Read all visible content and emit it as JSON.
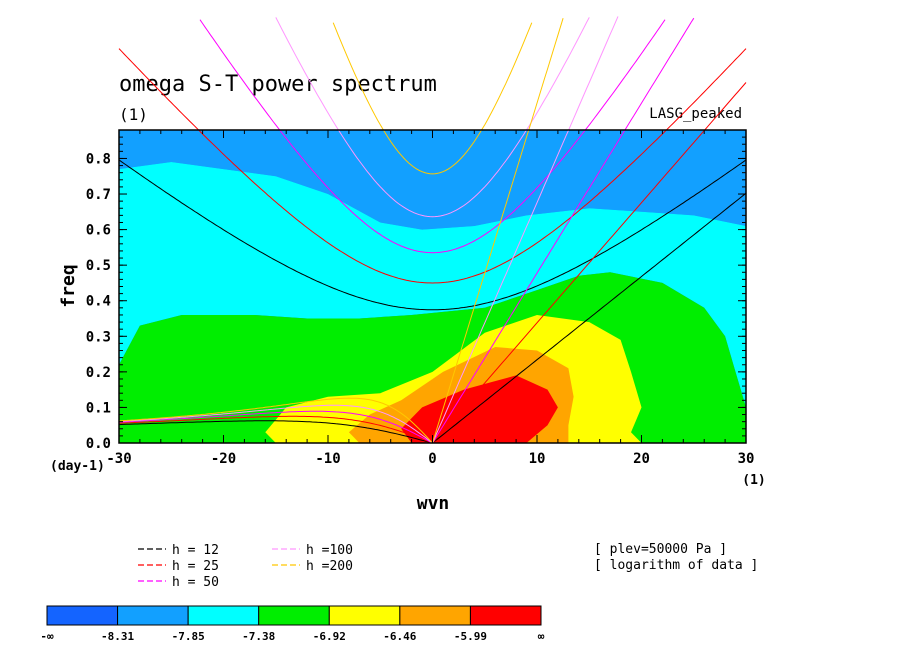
{
  "chart_data": {
    "type": "contour",
    "title": "omega S-T power spectrum",
    "units_label": "(1)",
    "model_label": "LASG_peaked",
    "xlabel": "wvn",
    "ylabel": "freq",
    "x_unit_label": "(1)",
    "y_unit_label": "(day-1)",
    "xlim": [
      -30,
      30
    ],
    "ylim": [
      0,
      0.88
    ],
    "xticks": [
      "-30",
      "-20",
      "-10",
      "0",
      "10",
      "20",
      "30"
    ],
    "xtick_values": [
      -30,
      -20,
      -10,
      0,
      10,
      20,
      30
    ],
    "yticks": [
      "0.0",
      "0.1",
      "0.2",
      "0.3",
      "0.4",
      "0.5",
      "0.6",
      "0.7",
      "0.8"
    ],
    "ytick_values": [
      0,
      0.1,
      0.2,
      0.3,
      0.4,
      0.5,
      0.6,
      0.7,
      0.8
    ],
    "levels": [
      {
        "lower": "-∞",
        "upper": "-8.31",
        "color": "#1464ff"
      },
      {
        "lower": "-8.31",
        "upper": "-7.85",
        "color": "#12a0ff"
      },
      {
        "lower": "-7.85",
        "upper": "-7.38",
        "color": "#00ffff"
      },
      {
        "lower": "-7.38",
        "upper": "-6.92",
        "color": "#00ee00"
      },
      {
        "lower": "-6.92",
        "upper": "-6.46",
        "color": "#ffff00"
      },
      {
        "lower": "-6.46",
        "upper": "-5.99",
        "color": "#ffa500"
      },
      {
        "lower": "-5.99",
        "upper": "∞",
        "color": "#ff0000"
      }
    ],
    "colorbar_labels": [
      "-∞",
      "-8.31",
      "-7.85",
      "-7.38",
      "-6.92",
      "-6.46",
      "-5.99",
      "∞"
    ],
    "filled_regions": [
      {
        "level": 1,
        "points": [
          [
            -30,
            0.65
          ],
          [
            -25,
            0.69
          ],
          [
            -20,
            0.71
          ],
          [
            -15,
            0.75
          ],
          [
            -10,
            0.72
          ],
          [
            -5,
            0.64
          ],
          [
            0,
            0.61
          ],
          [
            5,
            0.66
          ],
          [
            10,
            0.72
          ],
          [
            15,
            0.74
          ],
          [
            20,
            0.8
          ],
          [
            22,
            0.88
          ],
          [
            -30,
            0.88
          ]
        ]
      },
      {
        "level": 2,
        "points": [
          [
            -30,
            0.77
          ],
          [
            -25,
            0.79
          ],
          [
            -20,
            0.77
          ],
          [
            -15,
            0.75
          ],
          [
            -10,
            0.7
          ],
          [
            -5,
            0.62
          ],
          [
            -1,
            0.6
          ],
          [
            4,
            0.61
          ],
          [
            9,
            0.64
          ],
          [
            15,
            0.66
          ],
          [
            20,
            0.65
          ],
          [
            25,
            0.64
          ],
          [
            30,
            0.61
          ],
          [
            30,
            0.88
          ],
          [
            -30,
            0.88
          ]
        ]
      },
      {
        "level": 3,
        "points": [
          [
            -30,
            0.22
          ],
          [
            -28,
            0.33
          ],
          [
            -24,
            0.36
          ],
          [
            -17,
            0.36
          ],
          [
            -12,
            0.35
          ],
          [
            -7,
            0.35
          ],
          [
            -2,
            0.36
          ],
          [
            5,
            0.38
          ],
          [
            10,
            0.43
          ],
          [
            14,
            0.47
          ],
          [
            17,
            0.48
          ],
          [
            22,
            0.45
          ],
          [
            26,
            0.38
          ],
          [
            28,
            0.3
          ],
          [
            29,
            0.2
          ],
          [
            30,
            0.1
          ],
          [
            30,
            0.61
          ],
          [
            25,
            0.64
          ],
          [
            20,
            0.65
          ],
          [
            15,
            0.66
          ],
          [
            9,
            0.64
          ],
          [
            4,
            0.61
          ],
          [
            -1,
            0.6
          ],
          [
            -5,
            0.62
          ],
          [
            -10,
            0.7
          ],
          [
            -15,
            0.75
          ],
          [
            -20,
            0.77
          ],
          [
            -25,
            0.79
          ],
          [
            -30,
            0.77
          ]
        ]
      },
      {
        "level": 4,
        "points": [
          [
            -30,
            0.22
          ],
          [
            -28,
            0.33
          ],
          [
            -24,
            0.36
          ],
          [
            -17,
            0.36
          ],
          [
            -12,
            0.35
          ],
          [
            -7,
            0.35
          ],
          [
            -2,
            0.36
          ],
          [
            5,
            0.38
          ],
          [
            10,
            0.43
          ],
          [
            14,
            0.47
          ],
          [
            17,
            0.48
          ],
          [
            22,
            0.45
          ],
          [
            26,
            0.38
          ],
          [
            28,
            0.3
          ],
          [
            29,
            0.2
          ],
          [
            30,
            0.1
          ],
          [
            30,
            0
          ],
          [
            -30,
            0
          ]
        ]
      },
      {
        "level": 5,
        "points": [
          [
            -15,
            0
          ],
          [
            -16,
            0.03
          ],
          [
            -14,
            0.1
          ],
          [
            -10,
            0.13
          ],
          [
            -5,
            0.14
          ],
          [
            0,
            0.2
          ],
          [
            5,
            0.31
          ],
          [
            10,
            0.36
          ],
          [
            15,
            0.34
          ],
          [
            18,
            0.29
          ],
          [
            19,
            0.2
          ],
          [
            20,
            0.1
          ],
          [
            19,
            0.03
          ],
          [
            20,
            0
          ]
        ]
      },
      {
        "level": 6,
        "points": [
          [
            -7,
            0
          ],
          [
            -8,
            0.03
          ],
          [
            -6,
            0.08
          ],
          [
            -3,
            0.12
          ],
          [
            1,
            0.2
          ],
          [
            6,
            0.27
          ],
          [
            10,
            0.26
          ],
          [
            13,
            0.21
          ],
          [
            13.5,
            0.13
          ],
          [
            13,
            0.05
          ],
          [
            13,
            0
          ]
        ]
      },
      {
        "level": 7,
        "points": [
          [
            -2,
            0
          ],
          [
            -3,
            0.04
          ],
          [
            -1,
            0.1
          ],
          [
            3,
            0.15
          ],
          [
            8,
            0.19
          ],
          [
            11,
            0.15
          ],
          [
            12,
            0.1
          ],
          [
            11,
            0.05
          ],
          [
            9,
            0
          ]
        ]
      }
    ],
    "dispersion_curves": [
      {
        "h": 12,
        "color": "#000000"
      },
      {
        "h": 25,
        "color": "#ff0000"
      },
      {
        "h": 50,
        "color": "#ff00ff"
      },
      {
        "h": 100,
        "color": "#ff96ff"
      },
      {
        "h": 200,
        "color": "#ffc800"
      }
    ],
    "legend": [
      {
        "label": "h = 12",
        "color": "#000000"
      },
      {
        "label": "h = 25",
        "color": "#ff0000"
      },
      {
        "label": "h = 50",
        "color": "#ff00ff"
      },
      {
        "label": "h =100",
        "color": "#ff96ff"
      },
      {
        "label": "h =200",
        "color": "#ffc800"
      }
    ],
    "annotations": [
      "[ plev=50000 Pa ]",
      "[ logarithm of data ]"
    ]
  }
}
